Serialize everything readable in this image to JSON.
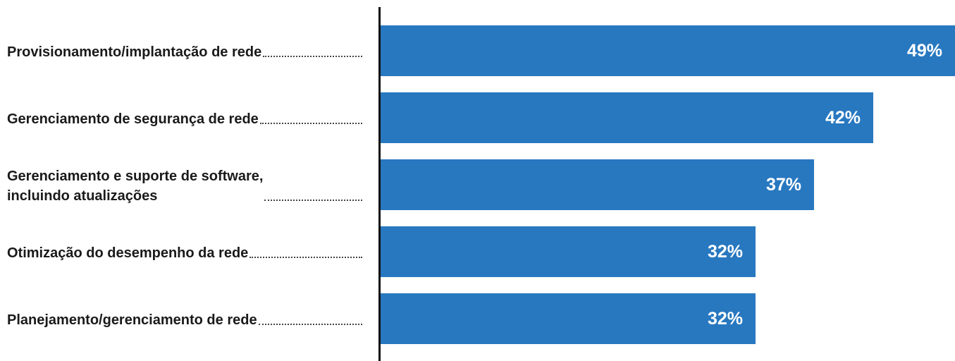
{
  "chart_data": {
    "type": "bar",
    "orientation": "horizontal",
    "categories": [
      "Provisionamento/implantação de rede",
      "Gerenciamento de segurança de rede",
      "Gerenciamento e suporte de software,\nincluindo atualizações",
      "Otimização do desempenho da rede",
      "Planejamento/gerenciamento de rede"
    ],
    "values": [
      49,
      42,
      37,
      32,
      32
    ],
    "value_labels": [
      "49%",
      "42%",
      "37%",
      "32%",
      "32%"
    ],
    "unit": "%",
    "xlim": [
      0,
      49
    ],
    "bar_color": "#2878c0",
    "value_label_color": "#ffffff",
    "grid": false,
    "legend": "none",
    "title": "",
    "xlabel": "",
    "ylabel": ""
  }
}
